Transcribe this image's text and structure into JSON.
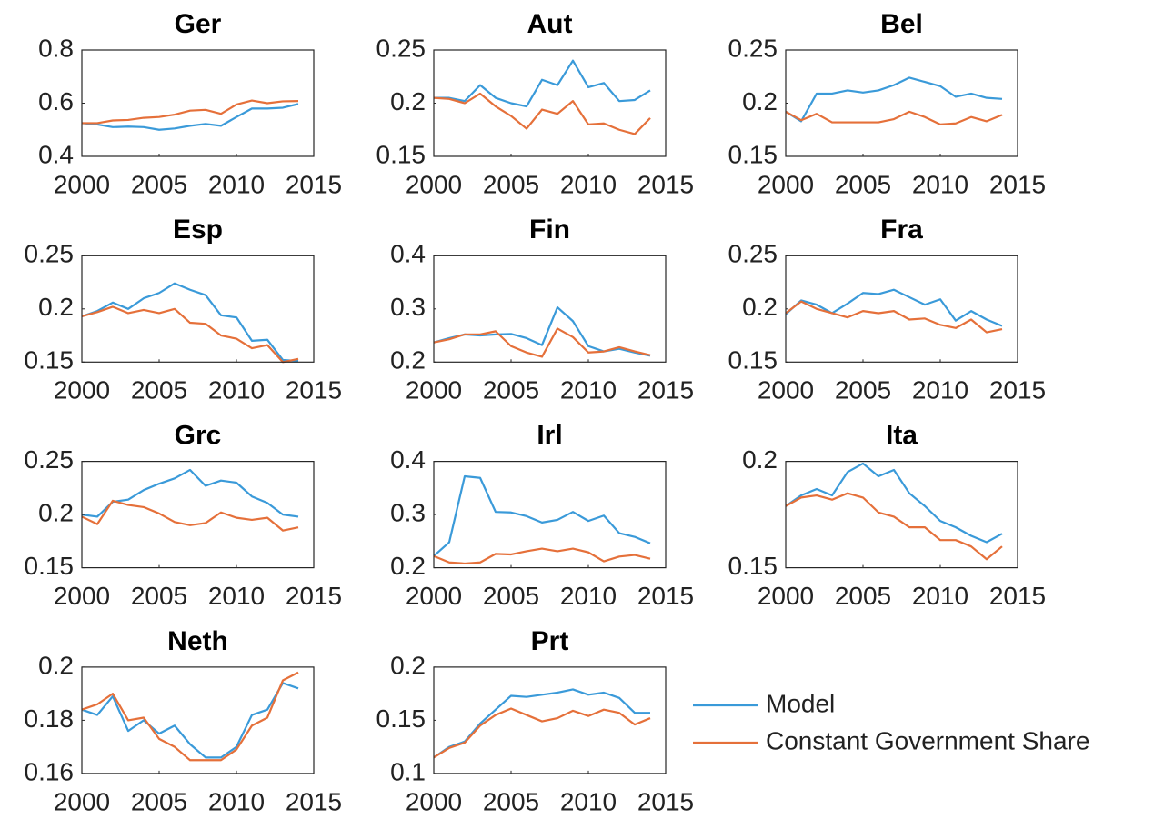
{
  "chart_data": [
    {
      "type": "line",
      "title": "Ger",
      "x": [
        2000,
        2001,
        2002,
        2003,
        2004,
        2005,
        2006,
        2007,
        2008,
        2009,
        2010,
        2011,
        2012,
        2013,
        2014
      ],
      "xlim": [
        2000,
        2015
      ],
      "xticks": [
        2000,
        2005,
        2010,
        2015
      ],
      "ylim": [
        0.4,
        0.8
      ],
      "yticks": [
        0.4,
        0.6,
        0.8
      ],
      "series": [
        {
          "name": "Model",
          "color": "#3a9ad9",
          "values": [
            0.525,
            0.52,
            0.51,
            0.512,
            0.51,
            0.5,
            0.505,
            0.515,
            0.522,
            0.515,
            0.548,
            0.58,
            0.58,
            0.583,
            0.597
          ]
        },
        {
          "name": "Constant Government Share",
          "color": "#e5703a",
          "values": [
            0.525,
            0.525,
            0.535,
            0.537,
            0.545,
            0.548,
            0.557,
            0.572,
            0.575,
            0.56,
            0.595,
            0.61,
            0.6,
            0.607,
            0.608
          ]
        }
      ]
    },
    {
      "type": "line",
      "title": "Aut",
      "x": [
        2000,
        2001,
        2002,
        2003,
        2004,
        2005,
        2006,
        2007,
        2008,
        2009,
        2010,
        2011,
        2012,
        2013,
        2014
      ],
      "xlim": [
        2000,
        2015
      ],
      "xticks": [
        2000,
        2005,
        2010,
        2015
      ],
      "ylim": [
        0.15,
        0.25
      ],
      "yticks": [
        0.15,
        0.2,
        0.25
      ],
      "series": [
        {
          "name": "Model",
          "color": "#3a9ad9",
          "values": [
            0.205,
            0.205,
            0.202,
            0.217,
            0.205,
            0.2,
            0.197,
            0.222,
            0.217,
            0.24,
            0.215,
            0.219,
            0.202,
            0.203,
            0.212
          ]
        },
        {
          "name": "Constant Government Share",
          "color": "#e5703a",
          "values": [
            0.205,
            0.204,
            0.2,
            0.209,
            0.197,
            0.188,
            0.176,
            0.194,
            0.19,
            0.202,
            0.18,
            0.181,
            0.175,
            0.171,
            0.186
          ]
        }
      ]
    },
    {
      "type": "line",
      "title": "Bel",
      "x": [
        2000,
        2001,
        2002,
        2003,
        2004,
        2005,
        2006,
        2007,
        2008,
        2009,
        2010,
        2011,
        2012,
        2013,
        2014
      ],
      "xlim": [
        2000,
        2015
      ],
      "xticks": [
        2000,
        2005,
        2010,
        2015
      ],
      "ylim": [
        0.15,
        0.25
      ],
      "yticks": [
        0.15,
        0.2,
        0.25
      ],
      "series": [
        {
          "name": "Model",
          "color": "#3a9ad9",
          "values": [
            0.192,
            0.183,
            0.209,
            0.209,
            0.212,
            0.21,
            0.212,
            0.217,
            0.224,
            0.22,
            0.216,
            0.206,
            0.209,
            0.205,
            0.204
          ]
        },
        {
          "name": "Constant Government Share",
          "color": "#e5703a",
          "values": [
            0.192,
            0.184,
            0.19,
            0.182,
            0.182,
            0.182,
            0.182,
            0.185,
            0.192,
            0.187,
            0.18,
            0.181,
            0.187,
            0.183,
            0.189
          ]
        }
      ]
    },
    {
      "type": "line",
      "title": "Esp",
      "x": [
        2000,
        2001,
        2002,
        2003,
        2004,
        2005,
        2006,
        2007,
        2008,
        2009,
        2010,
        2011,
        2012,
        2013,
        2014
      ],
      "xlim": [
        2000,
        2015
      ],
      "xticks": [
        2000,
        2005,
        2010,
        2015
      ],
      "ylim": [
        0.15,
        0.25
      ],
      "yticks": [
        0.15,
        0.2,
        0.25
      ],
      "series": [
        {
          "name": "Model",
          "color": "#3a9ad9",
          "values": [
            0.193,
            0.198,
            0.206,
            0.2,
            0.21,
            0.215,
            0.224,
            0.218,
            0.213,
            0.194,
            0.192,
            0.17,
            0.171,
            0.152,
            0.151
          ]
        },
        {
          "name": "Constant Government Share",
          "color": "#e5703a",
          "values": [
            0.193,
            0.197,
            0.202,
            0.196,
            0.199,
            0.196,
            0.2,
            0.187,
            0.186,
            0.175,
            0.172,
            0.163,
            0.166,
            0.15,
            0.153
          ]
        }
      ]
    },
    {
      "type": "line",
      "title": "Fin",
      "x": [
        2000,
        2001,
        2002,
        2003,
        2004,
        2005,
        2006,
        2007,
        2008,
        2009,
        2010,
        2011,
        2012,
        2013,
        2014
      ],
      "xlim": [
        2000,
        2015
      ],
      "xticks": [
        2000,
        2005,
        2010,
        2015
      ],
      "ylim": [
        0.2,
        0.4
      ],
      "yticks": [
        0.2,
        0.3,
        0.4
      ],
      "series": [
        {
          "name": "Model",
          "color": "#3a9ad9",
          "values": [
            0.237,
            0.245,
            0.252,
            0.25,
            0.252,
            0.253,
            0.245,
            0.232,
            0.303,
            0.277,
            0.23,
            0.22,
            0.225,
            0.218,
            0.212
          ]
        },
        {
          "name": "Constant Government Share",
          "color": "#e5703a",
          "values": [
            0.237,
            0.243,
            0.252,
            0.252,
            0.258,
            0.23,
            0.218,
            0.21,
            0.263,
            0.247,
            0.218,
            0.22,
            0.228,
            0.22,
            0.213
          ]
        }
      ]
    },
    {
      "type": "line",
      "title": "Fra",
      "x": [
        2000,
        2001,
        2002,
        2003,
        2004,
        2005,
        2006,
        2007,
        2008,
        2009,
        2010,
        2011,
        2012,
        2013,
        2014
      ],
      "xlim": [
        2000,
        2015
      ],
      "xticks": [
        2000,
        2005,
        2010,
        2015
      ],
      "ylim": [
        0.15,
        0.25
      ],
      "yticks": [
        0.15,
        0.2,
        0.25
      ],
      "series": [
        {
          "name": "Model",
          "color": "#3a9ad9",
          "values": [
            0.195,
            0.208,
            0.204,
            0.196,
            0.205,
            0.215,
            0.214,
            0.218,
            0.211,
            0.204,
            0.209,
            0.189,
            0.198,
            0.19,
            0.184
          ]
        },
        {
          "name": "Constant Government Share",
          "color": "#e5703a",
          "values": [
            0.196,
            0.207,
            0.2,
            0.196,
            0.192,
            0.198,
            0.196,
            0.198,
            0.19,
            0.191,
            0.185,
            0.182,
            0.19,
            0.178,
            0.181
          ]
        }
      ]
    },
    {
      "type": "line",
      "title": "Grc",
      "x": [
        2000,
        2001,
        2002,
        2003,
        2004,
        2005,
        2006,
        2007,
        2008,
        2009,
        2010,
        2011,
        2012,
        2013,
        2014
      ],
      "xlim": [
        2000,
        2015
      ],
      "xticks": [
        2000,
        2005,
        2010,
        2015
      ],
      "ylim": [
        0.15,
        0.25
      ],
      "yticks": [
        0.15,
        0.2,
        0.25
      ],
      "series": [
        {
          "name": "Model",
          "color": "#3a9ad9",
          "values": [
            0.2,
            0.198,
            0.212,
            0.214,
            0.223,
            0.229,
            0.234,
            0.242,
            0.227,
            0.232,
            0.23,
            0.217,
            0.211,
            0.2,
            0.198
          ]
        },
        {
          "name": "Constant Government Share",
          "color": "#e5703a",
          "values": [
            0.198,
            0.191,
            0.213,
            0.209,
            0.207,
            0.201,
            0.193,
            0.19,
            0.192,
            0.202,
            0.197,
            0.195,
            0.197,
            0.185,
            0.188
          ]
        }
      ]
    },
    {
      "type": "line",
      "title": "Irl",
      "x": [
        2000,
        2001,
        2002,
        2003,
        2004,
        2005,
        2006,
        2007,
        2008,
        2009,
        2010,
        2011,
        2012,
        2013,
        2014
      ],
      "xlim": [
        2000,
        2015
      ],
      "xticks": [
        2000,
        2005,
        2010,
        2015
      ],
      "ylim": [
        0.2,
        0.4
      ],
      "yticks": [
        0.2,
        0.3,
        0.4
      ],
      "series": [
        {
          "name": "Model",
          "color": "#3a9ad9",
          "values": [
            0.222,
            0.248,
            0.372,
            0.369,
            0.305,
            0.304,
            0.297,
            0.285,
            0.29,
            0.305,
            0.288,
            0.298,
            0.265,
            0.258,
            0.246
          ]
        },
        {
          "name": "Constant Government Share",
          "color": "#e5703a",
          "values": [
            0.222,
            0.21,
            0.208,
            0.21,
            0.226,
            0.225,
            0.231,
            0.236,
            0.231,
            0.236,
            0.229,
            0.212,
            0.221,
            0.224,
            0.217
          ]
        }
      ]
    },
    {
      "type": "line",
      "title": "Ita",
      "x": [
        2000,
        2001,
        2002,
        2003,
        2004,
        2005,
        2006,
        2007,
        2008,
        2009,
        2010,
        2011,
        2012,
        2013,
        2014
      ],
      "xlim": [
        2000,
        2015
      ],
      "xticks": [
        2000,
        2005,
        2010,
        2015
      ],
      "ylim": [
        0.15,
        0.2
      ],
      "yticks": [
        0.15,
        0.2
      ],
      "series": [
        {
          "name": "Model",
          "color": "#3a9ad9",
          "values": [
            0.179,
            0.184,
            0.187,
            0.184,
            0.195,
            0.199,
            0.193,
            0.196,
            0.185,
            0.179,
            0.172,
            0.169,
            0.165,
            0.162,
            0.166
          ]
        },
        {
          "name": "Constant Government Share",
          "color": "#e5703a",
          "values": [
            0.179,
            0.183,
            0.184,
            0.182,
            0.185,
            0.183,
            0.176,
            0.174,
            0.169,
            0.169,
            0.163,
            0.163,
            0.16,
            0.154,
            0.16
          ]
        }
      ]
    },
    {
      "type": "line",
      "title": "Neth",
      "x": [
        2000,
        2001,
        2002,
        2003,
        2004,
        2005,
        2006,
        2007,
        2008,
        2009,
        2010,
        2011,
        2012,
        2013,
        2014
      ],
      "xlim": [
        2000,
        2015
      ],
      "xticks": [
        2000,
        2005,
        2010,
        2015
      ],
      "ylim": [
        0.16,
        0.2
      ],
      "yticks": [
        0.16,
        0.18,
        0.2
      ],
      "series": [
        {
          "name": "Model",
          "color": "#3a9ad9",
          "values": [
            0.184,
            0.182,
            0.189,
            0.176,
            0.18,
            0.175,
            0.178,
            0.171,
            0.166,
            0.166,
            0.17,
            0.182,
            0.184,
            0.194,
            0.192
          ]
        },
        {
          "name": "Constant Government Share",
          "color": "#e5703a",
          "values": [
            0.184,
            0.186,
            0.19,
            0.18,
            0.181,
            0.173,
            0.17,
            0.165,
            0.165,
            0.165,
            0.169,
            0.178,
            0.181,
            0.195,
            0.198
          ]
        }
      ]
    },
    {
      "type": "line",
      "title": "Prt",
      "x": [
        2000,
        2001,
        2002,
        2003,
        2004,
        2005,
        2006,
        2007,
        2008,
        2009,
        2010,
        2011,
        2012,
        2013,
        2014
      ],
      "xlim": [
        2000,
        2015
      ],
      "xticks": [
        2000,
        2005,
        2010,
        2015
      ],
      "ylim": [
        0.1,
        0.2
      ],
      "yticks": [
        0.1,
        0.15,
        0.2
      ],
      "series": [
        {
          "name": "Model",
          "color": "#3a9ad9",
          "values": [
            0.115,
            0.125,
            0.13,
            0.147,
            0.16,
            0.173,
            0.172,
            0.174,
            0.176,
            0.179,
            0.174,
            0.176,
            0.171,
            0.157,
            0.157
          ]
        },
        {
          "name": "Constant Government Share",
          "color": "#e5703a",
          "values": [
            0.115,
            0.124,
            0.129,
            0.145,
            0.155,
            0.161,
            0.155,
            0.149,
            0.152,
            0.159,
            0.154,
            0.16,
            0.157,
            0.146,
            0.152
          ]
        }
      ]
    }
  ]
}
